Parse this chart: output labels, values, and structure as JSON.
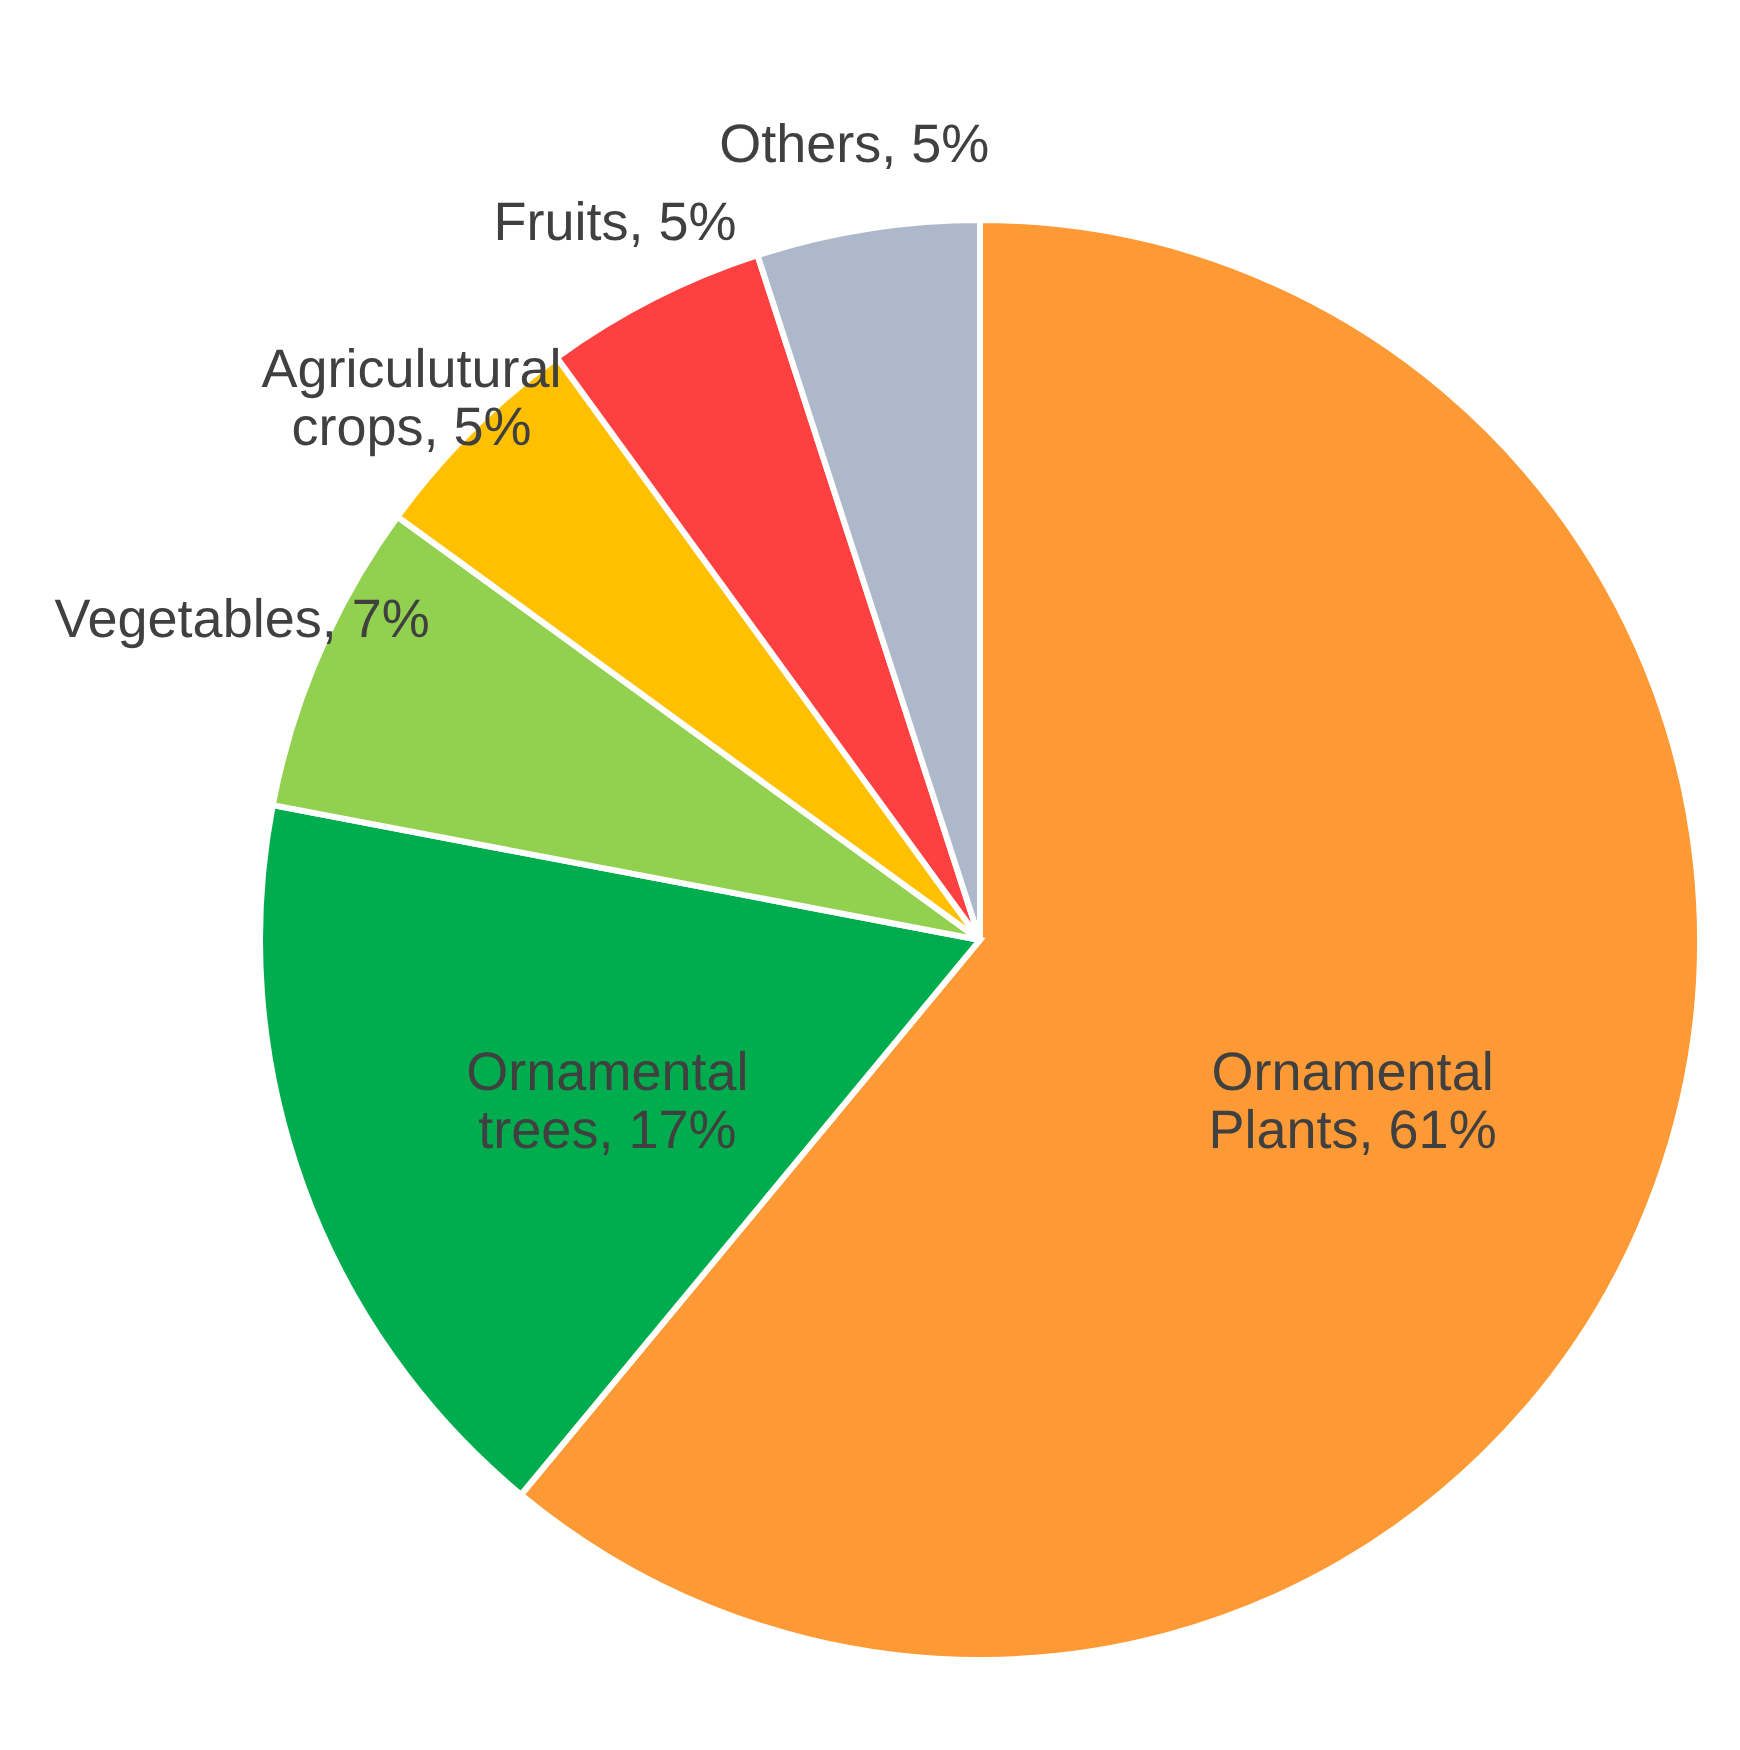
{
  "chart_data": {
    "type": "pie",
    "categories": [
      "Ornamental Plants",
      "Ornamental trees",
      "Vegetables",
      "Agriculutural crops",
      "Fruits",
      "Others"
    ],
    "values": [
      61,
      17,
      7,
      5,
      5,
      5
    ],
    "value_labels": [
      "61%",
      "17%",
      "7%",
      "5%",
      "5%",
      "5%"
    ],
    "colors": [
      "#fd9a35",
      "#00ad4e",
      "#92d050",
      "#ffc000",
      "#ff4040",
      "#adb9ca"
    ],
    "legend": false
  }
}
